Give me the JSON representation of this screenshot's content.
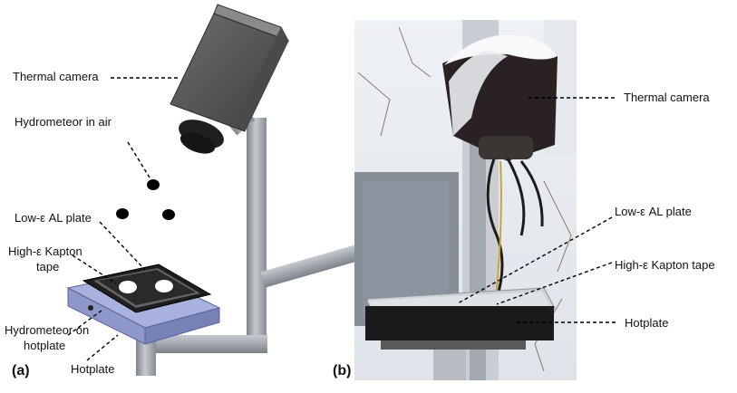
{
  "panel_a": {
    "tag": "(a)",
    "labels": {
      "thermal_camera": "Thermal camera",
      "hydrometeor_air": "Hydrometeor in air",
      "low_e_plate": "Low-ε AL plate",
      "high_e_tape_line1": "High-ε Kapton",
      "high_e_tape_line2": "tape",
      "hydrometeor_hotplate_line1": "Hydrometeor on",
      "hydrometeor_hotplate_line2": "hotplate",
      "hotplate": "Hotplate"
    }
  },
  "panel_b": {
    "tag": "(b)",
    "labels": {
      "thermal_camera": "Thermal camera",
      "low_e_plate": "Low-ε AL plate",
      "high_e_tape": "High-ε Kapton tape",
      "hotplate": "Hotplate"
    }
  },
  "colors": {
    "camera_body": "#555555",
    "pole": "#9aa0a6",
    "hotplate_base": "#8e97c9",
    "plate": "#2a2a2a",
    "snow": "#f2f4f7",
    "photo_frame": "#7f8a96"
  }
}
